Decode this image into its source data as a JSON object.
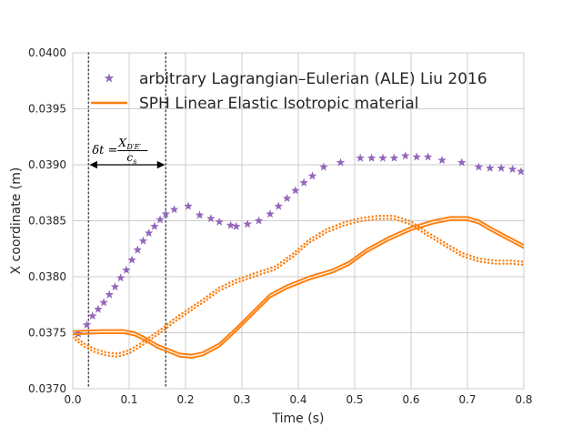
{
  "chart_data": {
    "type": "line",
    "xlabel": "Time (s)",
    "ylabel": "X coordinate (m)",
    "xlim": [
      0.0,
      0.8
    ],
    "ylim": [
      0.037,
      0.04
    ],
    "x_ticks": [
      "0.0",
      "0.1",
      "0.2",
      "0.3",
      "0.4",
      "0.5",
      "0.6",
      "0.7",
      "0.8"
    ],
    "y_ticks": [
      "0.0370",
      "0.0375",
      "0.0380",
      "0.0385",
      "0.0390",
      "0.0395",
      "0.0400"
    ],
    "grid": true,
    "legend_position": "top-right",
    "colors": {
      "ale": "#9467bd",
      "sph": "#ff7f0e",
      "grid": "#cccccc",
      "vline": "#555555"
    },
    "series": [
      {
        "name": "arbitrary Lagrangian–Eulerian (ALE) Liu 2016",
        "style": "star-markers",
        "points": [
          [
            0.01,
            0.03749
          ],
          [
            0.025,
            0.03757
          ],
          [
            0.035,
            0.03765
          ],
          [
            0.045,
            0.03771
          ],
          [
            0.055,
            0.03777
          ],
          [
            0.065,
            0.03784
          ],
          [
            0.075,
            0.03791
          ],
          [
            0.085,
            0.03799
          ],
          [
            0.095,
            0.03806
          ],
          [
            0.105,
            0.03815
          ],
          [
            0.115,
            0.03824
          ],
          [
            0.125,
            0.03832
          ],
          [
            0.135,
            0.03839
          ],
          [
            0.145,
            0.03845
          ],
          [
            0.155,
            0.03851
          ],
          [
            0.165,
            0.03856
          ],
          [
            0.18,
            0.0386
          ],
          [
            0.205,
            0.03863
          ],
          [
            0.225,
            0.03855
          ],
          [
            0.245,
            0.03852
          ],
          [
            0.26,
            0.03849
          ],
          [
            0.28,
            0.03846
          ],
          [
            0.29,
            0.03845
          ],
          [
            0.31,
            0.03847
          ],
          [
            0.33,
            0.0385
          ],
          [
            0.35,
            0.03856
          ],
          [
            0.365,
            0.03863
          ],
          [
            0.38,
            0.0387
          ],
          [
            0.395,
            0.03877
          ],
          [
            0.41,
            0.03884
          ],
          [
            0.425,
            0.0389
          ],
          [
            0.445,
            0.03898
          ],
          [
            0.475,
            0.03902
          ],
          [
            0.51,
            0.03906
          ],
          [
            0.53,
            0.03906
          ],
          [
            0.55,
            0.03906
          ],
          [
            0.57,
            0.03906
          ],
          [
            0.59,
            0.03908
          ],
          [
            0.61,
            0.03907
          ],
          [
            0.63,
            0.03907
          ],
          [
            0.655,
            0.03904
          ],
          [
            0.69,
            0.03902
          ],
          [
            0.72,
            0.03898
          ],
          [
            0.74,
            0.03897
          ],
          [
            0.76,
            0.03897
          ],
          [
            0.78,
            0.03896
          ],
          [
            0.795,
            0.03894
          ]
        ]
      },
      {
        "name": "SPH Linear Elastic Isotropic material",
        "style": "double-solid",
        "points": [
          [
            0.0,
            0.0375
          ],
          [
            0.05,
            0.03751
          ],
          [
            0.09,
            0.03751
          ],
          [
            0.11,
            0.03749
          ],
          [
            0.13,
            0.03744
          ],
          [
            0.15,
            0.03738
          ],
          [
            0.17,
            0.03734
          ],
          [
            0.19,
            0.0373
          ],
          [
            0.21,
            0.03729
          ],
          [
            0.23,
            0.03731
          ],
          [
            0.26,
            0.03739
          ],
          [
            0.29,
            0.03753
          ],
          [
            0.32,
            0.03768
          ],
          [
            0.35,
            0.03783
          ],
          [
            0.38,
            0.03791
          ],
          [
            0.42,
            0.03799
          ],
          [
            0.46,
            0.03805
          ],
          [
            0.49,
            0.03812
          ],
          [
            0.52,
            0.03823
          ],
          [
            0.56,
            0.03834
          ],
          [
            0.6,
            0.03843
          ],
          [
            0.64,
            0.03849
          ],
          [
            0.67,
            0.03852
          ],
          [
            0.7,
            0.03852
          ],
          [
            0.72,
            0.03849
          ],
          [
            0.74,
            0.03843
          ],
          [
            0.77,
            0.03835
          ],
          [
            0.8,
            0.03827
          ]
        ]
      },
      {
        "name": "",
        "style": "double-dotted",
        "points": [
          [
            0.0,
            0.03747
          ],
          [
            0.02,
            0.03739
          ],
          [
            0.04,
            0.03734
          ],
          [
            0.06,
            0.03731
          ],
          [
            0.08,
            0.0373
          ],
          [
            0.1,
            0.03733
          ],
          [
            0.12,
            0.03739
          ],
          [
            0.14,
            0.03746
          ],
          [
            0.16,
            0.03753
          ],
          [
            0.18,
            0.03761
          ],
          [
            0.2,
            0.03768
          ],
          [
            0.23,
            0.03778
          ],
          [
            0.26,
            0.03789
          ],
          [
            0.29,
            0.03796
          ],
          [
            0.33,
            0.03803
          ],
          [
            0.36,
            0.03808
          ],
          [
            0.39,
            0.03819
          ],
          [
            0.42,
            0.03832
          ],
          [
            0.45,
            0.03841
          ],
          [
            0.48,
            0.03847
          ],
          [
            0.51,
            0.03851
          ],
          [
            0.54,
            0.03853
          ],
          [
            0.57,
            0.03853
          ],
          [
            0.6,
            0.03848
          ],
          [
            0.63,
            0.03838
          ],
          [
            0.66,
            0.03829
          ],
          [
            0.69,
            0.0382
          ],
          [
            0.72,
            0.03815
          ],
          [
            0.75,
            0.03813
          ],
          [
            0.78,
            0.03813
          ],
          [
            0.8,
            0.03812
          ]
        ]
      }
    ],
    "vlines": [
      0.028,
      0.165
    ],
    "annotation": {
      "arrow_x": [
        0.028,
        0.165
      ],
      "arrow_y": 0.039,
      "lhs": "δt =",
      "numerator": "X",
      "numerator_sub": "D′E′",
      "denominator": "c",
      "denominator_sub": "s"
    }
  }
}
